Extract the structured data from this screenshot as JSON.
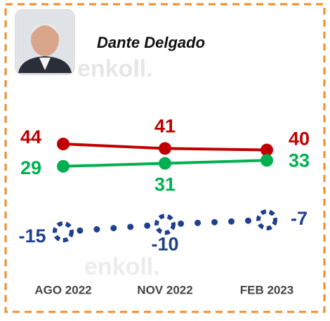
{
  "chart_data": {
    "type": "line",
    "title": "Dante Delgado",
    "watermark": "enkoll.",
    "categories": [
      "AGO 2022",
      "NOV 2022",
      "FEB 2023"
    ],
    "series": [
      {
        "color": "#c00000",
        "values": [
          44,
          41,
          40
        ],
        "style": "solid"
      },
      {
        "color": "#00b050",
        "values": [
          29,
          31,
          33
        ],
        "style": "solid"
      },
      {
        "color": "#1f3f8f",
        "values": [
          -15,
          -10,
          -7
        ],
        "style": "dotted"
      }
    ]
  }
}
